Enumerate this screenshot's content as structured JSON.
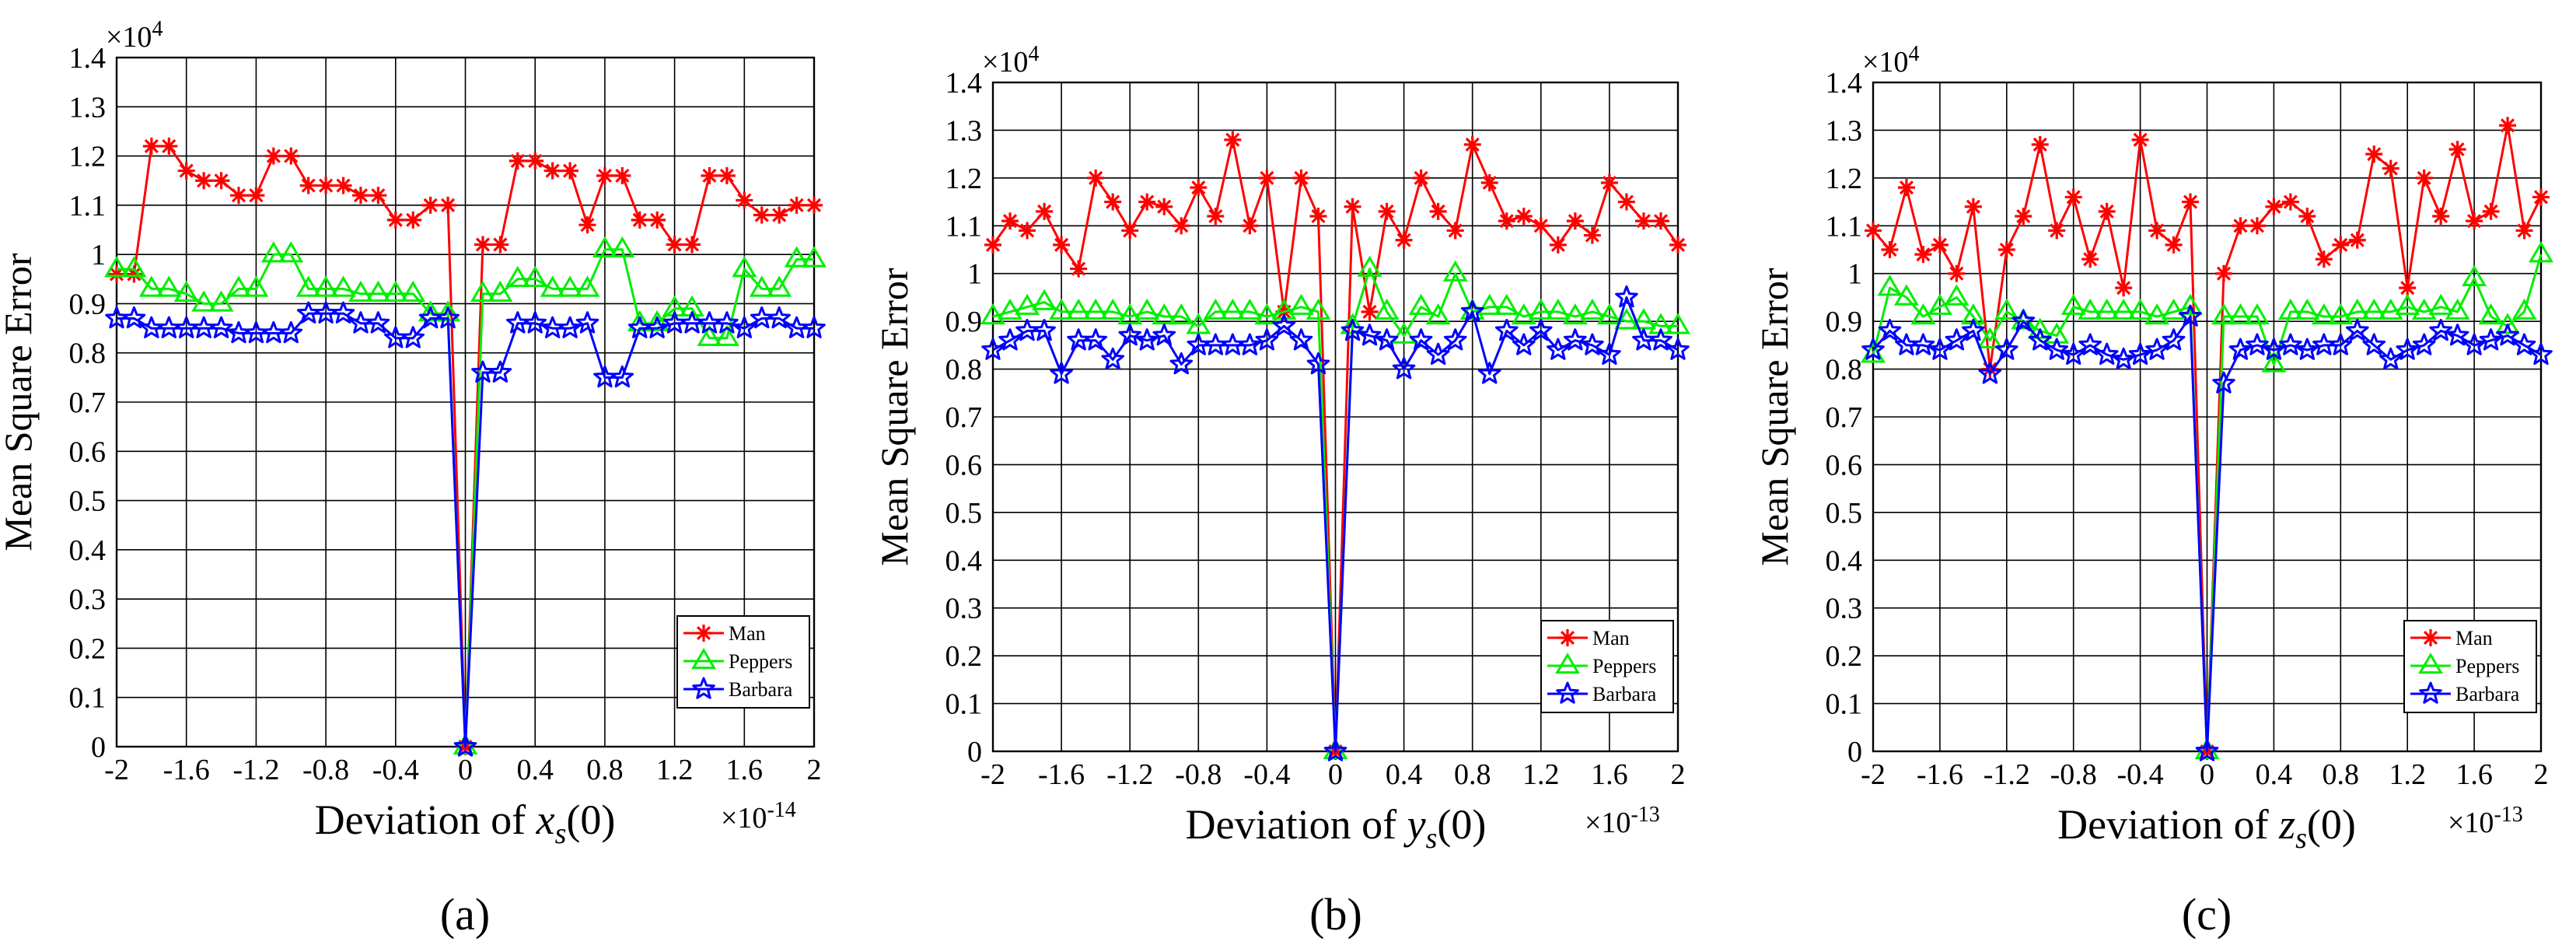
{
  "figure": {
    "panels": [
      "(a)",
      "(b)",
      "(c)"
    ]
  },
  "chart_data": [
    {
      "type": "line",
      "panel_label": "(a)",
      "ylabel": "Mean Square Error",
      "xlabel_prefix": "Deviation of ",
      "xlabel_var": "x",
      "xlabel_sub": "s",
      "xlabel_suffix": "(0)",
      "x_scale_base": "×10",
      "x_scale_exp": "-14",
      "y_scale_base": "×10",
      "y_scale_exp": "4",
      "xlim": [
        -2,
        2
      ],
      "ylim": [
        0,
        1.4
      ],
      "x_ticks": [
        "-2",
        "-1.6",
        "-1.2",
        "-0.8",
        "-0.4",
        "0",
        "0.4",
        "0.8",
        "1.2",
        "1.6",
        "2"
      ],
      "y_ticks": [
        "0",
        "0.1",
        "0.2",
        "0.3",
        "0.4",
        "0.5",
        "0.6",
        "0.7",
        "0.8",
        "0.9",
        "1",
        "1.1",
        "1.2",
        "1.3",
        "1.4"
      ],
      "grid": true,
      "legend_position": "bottom-right",
      "series": [
        {
          "name": "Man",
          "color": "#ff0000",
          "marker": "asterisk",
          "x": [
            -2,
            -1.9,
            -1.8,
            -1.7,
            -1.6,
            -1.5,
            -1.4,
            -1.3,
            -1.2,
            -1.1,
            -1.0,
            -0.9,
            -0.8,
            -0.7,
            -0.6,
            -0.5,
            -0.4,
            -0.3,
            -0.2,
            -0.1,
            0,
            0.1,
            0.2,
            0.3,
            0.4,
            0.5,
            0.6,
            0.7,
            0.8,
            0.9,
            1.0,
            1.1,
            1.2,
            1.3,
            1.4,
            1.5,
            1.6,
            1.7,
            1.8,
            1.9,
            2.0
          ],
          "values": [
            0.96,
            0.96,
            1.22,
            1.22,
            1.17,
            1.15,
            1.15,
            1.12,
            1.12,
            1.2,
            1.2,
            1.14,
            1.14,
            1.14,
            1.12,
            1.12,
            1.07,
            1.07,
            1.1,
            1.1,
            0,
            1.02,
            1.02,
            1.19,
            1.19,
            1.17,
            1.17,
            1.06,
            1.16,
            1.16,
            1.07,
            1.07,
            1.02,
            1.02,
            1.16,
            1.16,
            1.11,
            1.08,
            1.08,
            1.1,
            1.1
          ]
        },
        {
          "name": "Peppers",
          "color": "#00ee00",
          "marker": "triangle",
          "x": [
            -2,
            -1.9,
            -1.8,
            -1.7,
            -1.6,
            -1.5,
            -1.4,
            -1.3,
            -1.2,
            -1.1,
            -1.0,
            -0.9,
            -0.8,
            -0.7,
            -0.6,
            -0.5,
            -0.4,
            -0.3,
            -0.2,
            -0.1,
            0,
            0.1,
            0.2,
            0.3,
            0.4,
            0.5,
            0.6,
            0.7,
            0.8,
            0.9,
            1.0,
            1.1,
            1.2,
            1.3,
            1.4,
            1.5,
            1.6,
            1.7,
            1.8,
            1.9,
            2.0
          ],
          "values": [
            0.97,
            0.97,
            0.93,
            0.93,
            0.92,
            0.9,
            0.9,
            0.93,
            0.93,
            1.0,
            1.0,
            0.93,
            0.93,
            0.93,
            0.92,
            0.92,
            0.92,
            0.92,
            0.88,
            0.88,
            0,
            0.92,
            0.92,
            0.95,
            0.95,
            0.93,
            0.93,
            0.93,
            1.01,
            1.01,
            0.86,
            0.86,
            0.89,
            0.89,
            0.83,
            0.83,
            0.97,
            0.93,
            0.93,
            0.99,
            0.99
          ]
        },
        {
          "name": "Barbara",
          "color": "#0000ff",
          "marker": "star",
          "x": [
            -2,
            -1.9,
            -1.8,
            -1.7,
            -1.6,
            -1.5,
            -1.4,
            -1.3,
            -1.2,
            -1.1,
            -1.0,
            -0.9,
            -0.8,
            -0.7,
            -0.6,
            -0.5,
            -0.4,
            -0.3,
            -0.2,
            -0.1,
            0,
            0.1,
            0.2,
            0.3,
            0.4,
            0.5,
            0.6,
            0.7,
            0.8,
            0.9,
            1.0,
            1.1,
            1.2,
            1.3,
            1.4,
            1.5,
            1.6,
            1.7,
            1.8,
            1.9,
            2.0
          ],
          "values": [
            0.87,
            0.87,
            0.85,
            0.85,
            0.85,
            0.85,
            0.85,
            0.84,
            0.84,
            0.84,
            0.84,
            0.88,
            0.88,
            0.88,
            0.86,
            0.86,
            0.83,
            0.83,
            0.87,
            0.87,
            0,
            0.76,
            0.76,
            0.86,
            0.86,
            0.85,
            0.85,
            0.86,
            0.75,
            0.75,
            0.85,
            0.85,
            0.86,
            0.86,
            0.86,
            0.86,
            0.85,
            0.87,
            0.87,
            0.85,
            0.85
          ]
        }
      ]
    },
    {
      "type": "line",
      "panel_label": "(b)",
      "ylabel": "Mean Square Error",
      "xlabel_prefix": "Deviation of ",
      "xlabel_var": "y",
      "xlabel_sub": "s",
      "xlabel_suffix": "(0)",
      "x_scale_base": "×10",
      "x_scale_exp": "-13",
      "y_scale_base": "×10",
      "y_scale_exp": "4",
      "xlim": [
        -2,
        2
      ],
      "ylim": [
        0,
        1.4
      ],
      "x_ticks": [
        "-2",
        "-1.6",
        "-1.2",
        "-0.8",
        "-0.4",
        "0",
        "0.4",
        "0.8",
        "1.2",
        "1.6",
        "2"
      ],
      "y_ticks": [
        "0",
        "0.1",
        "0.2",
        "0.3",
        "0.4",
        "0.5",
        "0.6",
        "0.7",
        "0.8",
        "0.9",
        "1",
        "1.1",
        "1.2",
        "1.3",
        "1.4"
      ],
      "grid": true,
      "legend_position": "bottom-right",
      "series": [
        {
          "name": "Man",
          "color": "#ff0000",
          "marker": "asterisk",
          "x": [
            -2,
            -1.9,
            -1.8,
            -1.7,
            -1.6,
            -1.5,
            -1.4,
            -1.3,
            -1.2,
            -1.1,
            -1.0,
            -0.9,
            -0.8,
            -0.7,
            -0.6,
            -0.5,
            -0.4,
            -0.3,
            -0.2,
            -0.1,
            0,
            0.1,
            0.2,
            0.3,
            0.4,
            0.5,
            0.6,
            0.7,
            0.8,
            0.9,
            1.0,
            1.1,
            1.2,
            1.3,
            1.4,
            1.5,
            1.6,
            1.7,
            1.8,
            1.9,
            2.0
          ],
          "values": [
            1.06,
            1.11,
            1.09,
            1.13,
            1.06,
            1.01,
            1.2,
            1.15,
            1.09,
            1.15,
            1.14,
            1.1,
            1.18,
            1.12,
            1.28,
            1.1,
            1.2,
            0.92,
            1.2,
            1.12,
            0,
            1.14,
            0.92,
            1.13,
            1.07,
            1.2,
            1.13,
            1.09,
            1.27,
            1.19,
            1.11,
            1.12,
            1.1,
            1.06,
            1.11,
            1.08,
            1.19,
            1.15,
            1.11,
            1.11,
            1.06
          ]
        },
        {
          "name": "Peppers",
          "color": "#00ee00",
          "marker": "triangle",
          "x": [
            -2,
            -1.9,
            -1.8,
            -1.7,
            -1.6,
            -1.5,
            -1.4,
            -1.3,
            -1.2,
            -1.1,
            -1.0,
            -0.9,
            -0.8,
            -0.7,
            -0.6,
            -0.5,
            -0.4,
            -0.3,
            -0.2,
            -0.1,
            0,
            0.1,
            0.2,
            0.3,
            0.4,
            0.5,
            0.6,
            0.7,
            0.8,
            0.9,
            1.0,
            1.1,
            1.2,
            1.3,
            1.4,
            1.5,
            1.6,
            1.7,
            1.8,
            1.9,
            2.0
          ],
          "values": [
            0.91,
            0.92,
            0.93,
            0.94,
            0.92,
            0.92,
            0.92,
            0.92,
            0.91,
            0.92,
            0.91,
            0.91,
            0.89,
            0.92,
            0.92,
            0.92,
            0.91,
            0.92,
            0.93,
            0.92,
            0,
            0.89,
            1.01,
            0.92,
            0.87,
            0.93,
            0.91,
            1.0,
            0.92,
            0.93,
            0.93,
            0.91,
            0.92,
            0.92,
            0.91,
            0.92,
            0.91,
            0.9,
            0.9,
            0.89,
            0.89
          ]
        },
        {
          "name": "Barbara",
          "color": "#0000ff",
          "marker": "star",
          "x": [
            -2,
            -1.9,
            -1.8,
            -1.7,
            -1.6,
            -1.5,
            -1.4,
            -1.3,
            -1.2,
            -1.1,
            -1.0,
            -0.9,
            -0.8,
            -0.7,
            -0.6,
            -0.5,
            -0.4,
            -0.3,
            -0.2,
            -0.1,
            0,
            0.1,
            0.2,
            0.3,
            0.4,
            0.5,
            0.6,
            0.7,
            0.8,
            0.9,
            1.0,
            1.1,
            1.2,
            1.3,
            1.4,
            1.5,
            1.6,
            1.7,
            1.8,
            1.9,
            2.0
          ],
          "values": [
            0.84,
            0.86,
            0.88,
            0.88,
            0.79,
            0.86,
            0.86,
            0.82,
            0.87,
            0.86,
            0.87,
            0.81,
            0.85,
            0.85,
            0.85,
            0.85,
            0.86,
            0.89,
            0.86,
            0.81,
            0,
            0.88,
            0.87,
            0.86,
            0.8,
            0.86,
            0.83,
            0.86,
            0.92,
            0.79,
            0.88,
            0.85,
            0.88,
            0.84,
            0.86,
            0.85,
            0.83,
            0.95,
            0.86,
            0.86,
            0.84
          ]
        }
      ]
    },
    {
      "type": "line",
      "panel_label": "(c)",
      "ylabel": "Mean Square Error",
      "xlabel_prefix": "Deviation of ",
      "xlabel_var": "z",
      "xlabel_sub": "s",
      "xlabel_suffix": "(0)",
      "x_scale_base": "×10",
      "x_scale_exp": "-13",
      "y_scale_base": "×10",
      "y_scale_exp": "4",
      "xlim": [
        -2,
        2
      ],
      "ylim": [
        0,
        1.4
      ],
      "x_ticks": [
        "-2",
        "-1.6",
        "-1.2",
        "-0.8",
        "-0.4",
        "0",
        "0.4",
        "0.8",
        "1.2",
        "1.6",
        "2"
      ],
      "y_ticks": [
        "0",
        "0.1",
        "0.2",
        "0.3",
        "0.4",
        "0.5",
        "0.6",
        "0.7",
        "0.8",
        "0.9",
        "1",
        "1.1",
        "1.2",
        "1.3",
        "1.4"
      ],
      "grid": true,
      "legend_position": "bottom-right",
      "series": [
        {
          "name": "Man",
          "color": "#ff0000",
          "marker": "asterisk",
          "x": [
            -2,
            -1.9,
            -1.8,
            -1.7,
            -1.6,
            -1.5,
            -1.4,
            -1.3,
            -1.2,
            -1.1,
            -1.0,
            -0.9,
            -0.8,
            -0.7,
            -0.6,
            -0.5,
            -0.4,
            -0.3,
            -0.2,
            -0.1,
            0,
            0.1,
            0.2,
            0.3,
            0.4,
            0.5,
            0.6,
            0.7,
            0.8,
            0.9,
            1.0,
            1.1,
            1.2,
            1.3,
            1.4,
            1.5,
            1.6,
            1.7,
            1.8,
            1.9,
            2.0
          ],
          "values": [
            1.09,
            1.05,
            1.18,
            1.04,
            1.06,
            1.0,
            1.14,
            0.8,
            1.05,
            1.12,
            1.27,
            1.09,
            1.16,
            1.03,
            1.13,
            0.97,
            1.28,
            1.09,
            1.06,
            1.15,
            0,
            1.0,
            1.1,
            1.1,
            1.14,
            1.15,
            1.12,
            1.03,
            1.06,
            1.07,
            1.25,
            1.22,
            0.97,
            1.2,
            1.12,
            1.26,
            1.11,
            1.13,
            1.31,
            1.09,
            1.16
          ]
        },
        {
          "name": "Peppers",
          "color": "#00ee00",
          "marker": "triangle",
          "x": [
            -2,
            -1.9,
            -1.8,
            -1.7,
            -1.6,
            -1.5,
            -1.4,
            -1.3,
            -1.2,
            -1.1,
            -1.0,
            -0.9,
            -0.8,
            -0.7,
            -0.6,
            -0.5,
            -0.4,
            -0.3,
            -0.2,
            -0.1,
            0,
            0.1,
            0.2,
            0.3,
            0.4,
            0.5,
            0.6,
            0.7,
            0.8,
            0.9,
            1.0,
            1.1,
            1.2,
            1.3,
            1.4,
            1.5,
            1.6,
            1.7,
            1.8,
            1.9,
            2.0
          ],
          "values": [
            0.83,
            0.97,
            0.95,
            0.91,
            0.93,
            0.95,
            0.91,
            0.86,
            0.92,
            0.9,
            0.88,
            0.87,
            0.93,
            0.92,
            0.92,
            0.92,
            0.92,
            0.91,
            0.92,
            0.93,
            0,
            0.91,
            0.91,
            0.91,
            0.81,
            0.92,
            0.92,
            0.91,
            0.91,
            0.92,
            0.92,
            0.92,
            0.93,
            0.92,
            0.93,
            0.92,
            0.99,
            0.91,
            0.89,
            0.92,
            1.04
          ]
        },
        {
          "name": "Barbara",
          "color": "#0000ff",
          "marker": "star",
          "x": [
            -2,
            -1.9,
            -1.8,
            -1.7,
            -1.6,
            -1.5,
            -1.4,
            -1.3,
            -1.2,
            -1.1,
            -1.0,
            -0.9,
            -0.8,
            -0.7,
            -0.6,
            -0.5,
            -0.4,
            -0.3,
            -0.2,
            -0.1,
            0,
            0.1,
            0.2,
            0.3,
            0.4,
            0.5,
            0.6,
            0.7,
            0.8,
            0.9,
            1.0,
            1.1,
            1.2,
            1.3,
            1.4,
            1.5,
            1.6,
            1.7,
            1.8,
            1.9,
            2.0
          ],
          "values": [
            0.84,
            0.88,
            0.85,
            0.85,
            0.84,
            0.86,
            0.88,
            0.79,
            0.84,
            0.9,
            0.86,
            0.84,
            0.83,
            0.85,
            0.83,
            0.82,
            0.83,
            0.84,
            0.86,
            0.91,
            0,
            0.77,
            0.84,
            0.85,
            0.84,
            0.85,
            0.84,
            0.85,
            0.85,
            0.88,
            0.85,
            0.82,
            0.84,
            0.85,
            0.88,
            0.87,
            0.85,
            0.86,
            0.87,
            0.85,
            0.83
          ]
        }
      ]
    }
  ]
}
